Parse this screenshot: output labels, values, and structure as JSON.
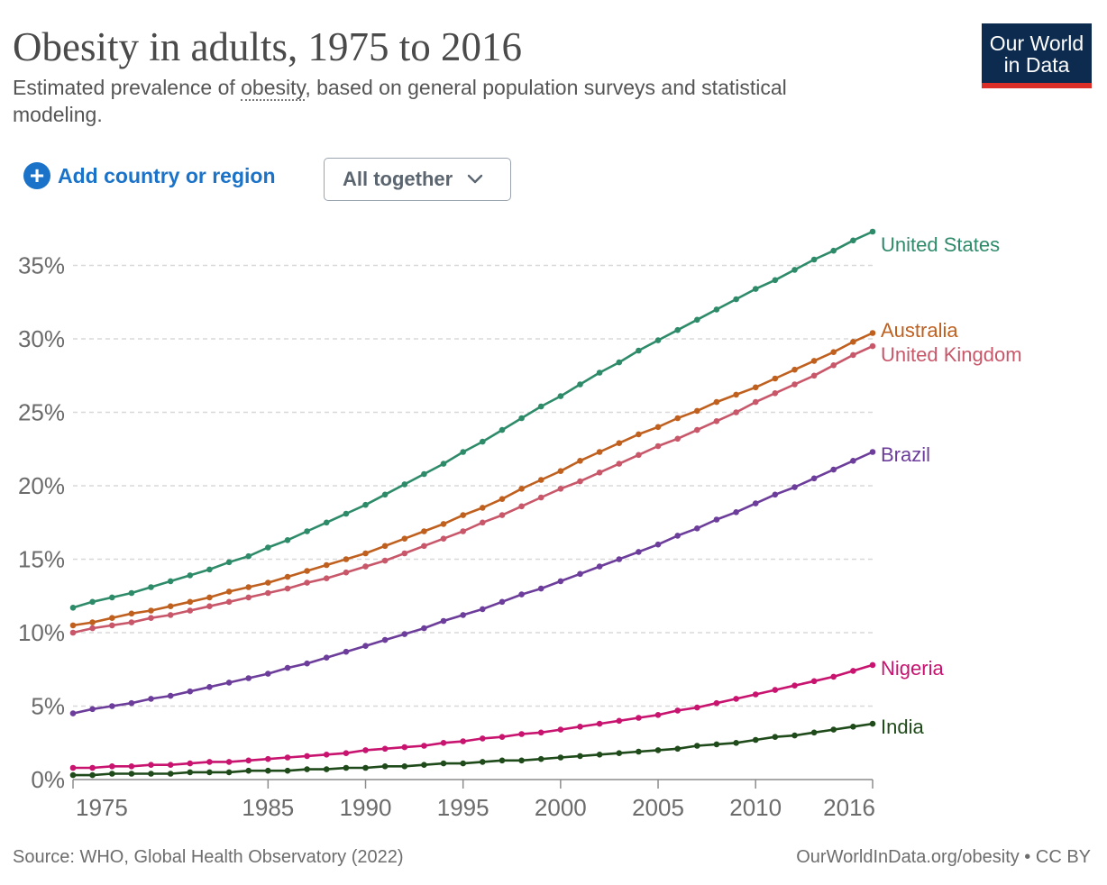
{
  "header": {
    "title": "Obesity in adults, 1975 to 2016",
    "subtitle_before": "Estimated prevalence of ",
    "subtitle_link": "obesity",
    "subtitle_after": ", based on general population surveys and statistical modeling.",
    "logo_line1": "Our World",
    "logo_line2": "in Data"
  },
  "controls": {
    "add_label": "Add country or region",
    "dropdown_value": "All together"
  },
  "footer": {
    "source": "Source: WHO, Global Health Observatory (2022)",
    "url": "OurWorldInData.org/obesity • CC BY"
  },
  "colors": {
    "United States": "#2e8b6a",
    "Australia": "#c0601f",
    "United Kingdom": "#c8576a",
    "Brazil": "#6c3d9a",
    "Nigeria": "#c8136f",
    "India": "#1f4a1a"
  },
  "chart_data": {
    "type": "line",
    "x_ticks": [
      1975,
      1985,
      1990,
      1995,
      2000,
      2005,
      2010,
      2016
    ],
    "xlim": [
      1975,
      2016
    ],
    "ylim": [
      0,
      37
    ],
    "y_ticks": [
      0,
      5,
      10,
      15,
      20,
      25,
      30,
      35
    ],
    "y_tick_labels": [
      "0%",
      "5%",
      "10%",
      "15%",
      "20%",
      "25%",
      "30%",
      "35%"
    ],
    "grid": true,
    "legend": "inline labels at line ends",
    "series": [
      {
        "name": "United States",
        "values": [
          11.7,
          12.1,
          12.4,
          12.7,
          13.1,
          13.5,
          13.9,
          14.3,
          14.8,
          15.2,
          15.8,
          16.3,
          16.9,
          17.5,
          18.1,
          18.7,
          19.4,
          20.1,
          20.8,
          21.5,
          22.3,
          23.0,
          23.8,
          24.6,
          25.4,
          26.1,
          26.9,
          27.7,
          28.4,
          29.2,
          29.9,
          30.6,
          31.3,
          32.0,
          32.7,
          33.4,
          34.0,
          34.7,
          35.4,
          36.0,
          36.7,
          37.3
        ]
      },
      {
        "name": "Australia",
        "values": [
          10.5,
          10.7,
          11.0,
          11.3,
          11.5,
          11.8,
          12.1,
          12.4,
          12.8,
          13.1,
          13.4,
          13.8,
          14.2,
          14.6,
          15.0,
          15.4,
          15.9,
          16.4,
          16.9,
          17.4,
          18.0,
          18.5,
          19.1,
          19.8,
          20.4,
          21.0,
          21.7,
          22.3,
          22.9,
          23.5,
          24.0,
          24.6,
          25.1,
          25.7,
          26.2,
          26.7,
          27.3,
          27.9,
          28.5,
          29.1,
          29.8,
          30.4
        ]
      },
      {
        "name": "United Kingdom",
        "values": [
          10.0,
          10.3,
          10.5,
          10.7,
          11.0,
          11.2,
          11.5,
          11.8,
          12.1,
          12.4,
          12.7,
          13.0,
          13.4,
          13.7,
          14.1,
          14.5,
          14.9,
          15.4,
          15.9,
          16.4,
          16.9,
          17.5,
          18.0,
          18.6,
          19.2,
          19.8,
          20.3,
          20.9,
          21.5,
          22.1,
          22.7,
          23.2,
          23.8,
          24.4,
          25.0,
          25.7,
          26.3,
          26.9,
          27.5,
          28.2,
          28.9,
          29.5
        ]
      },
      {
        "name": "Brazil",
        "values": [
          4.5,
          4.8,
          5.0,
          5.2,
          5.5,
          5.7,
          6.0,
          6.3,
          6.6,
          6.9,
          7.2,
          7.6,
          7.9,
          8.3,
          8.7,
          9.1,
          9.5,
          9.9,
          10.3,
          10.8,
          11.2,
          11.6,
          12.1,
          12.6,
          13.0,
          13.5,
          14.0,
          14.5,
          15.0,
          15.5,
          16.0,
          16.6,
          17.1,
          17.7,
          18.2,
          18.8,
          19.4,
          19.9,
          20.5,
          21.1,
          21.7,
          22.3
        ]
      },
      {
        "name": "Nigeria",
        "values": [
          0.8,
          0.8,
          0.9,
          0.9,
          1.0,
          1.0,
          1.1,
          1.2,
          1.2,
          1.3,
          1.4,
          1.5,
          1.6,
          1.7,
          1.8,
          2.0,
          2.1,
          2.2,
          2.3,
          2.5,
          2.6,
          2.8,
          2.9,
          3.1,
          3.2,
          3.4,
          3.6,
          3.8,
          4.0,
          4.2,
          4.4,
          4.7,
          4.9,
          5.2,
          5.5,
          5.8,
          6.1,
          6.4,
          6.7,
          7.0,
          7.4,
          7.8
        ]
      },
      {
        "name": "India",
        "values": [
          0.3,
          0.3,
          0.4,
          0.4,
          0.4,
          0.4,
          0.5,
          0.5,
          0.5,
          0.6,
          0.6,
          0.6,
          0.7,
          0.7,
          0.8,
          0.8,
          0.9,
          0.9,
          1.0,
          1.1,
          1.1,
          1.2,
          1.3,
          1.3,
          1.4,
          1.5,
          1.6,
          1.7,
          1.8,
          1.9,
          2.0,
          2.1,
          2.3,
          2.4,
          2.5,
          2.7,
          2.9,
          3.0,
          3.2,
          3.4,
          3.6,
          3.8
        ]
      }
    ]
  }
}
